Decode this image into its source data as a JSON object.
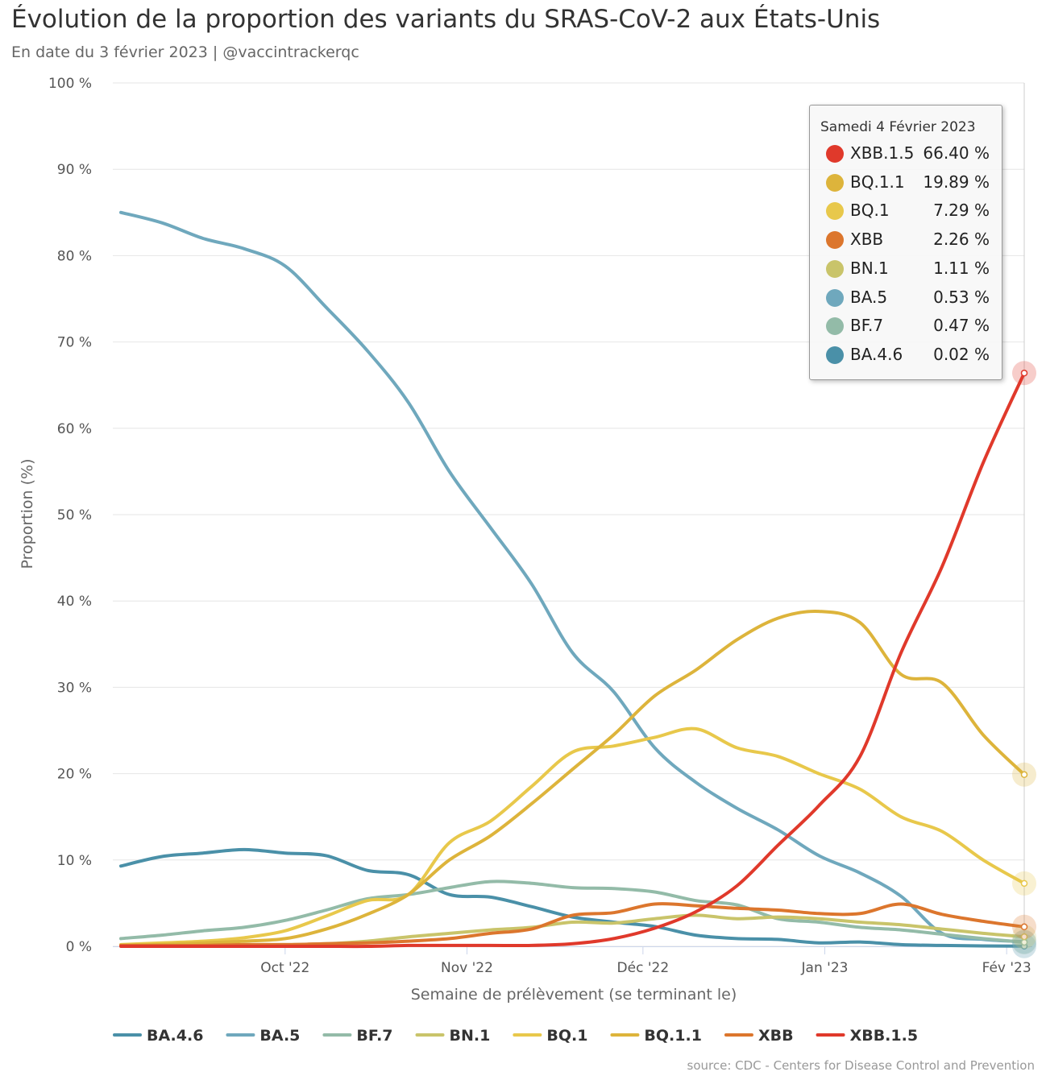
{
  "title": "Évolution de la proportion des variants du SRAS-CoV-2 aux États-Unis",
  "subtitle": "En date du 3 février 2023 | @vaccintrackerqc",
  "source": "source: CDC - Centers for Disease Control and Prevention",
  "tooltip": {
    "date": "Samedi 4 Février 2023",
    "rows": [
      {
        "name": "XBB.1.5",
        "value": "66.40 %",
        "color": "#e0392b"
      },
      {
        "name": "BQ.1.1",
        "value": "19.89 %",
        "color": "#ddb43b"
      },
      {
        "name": "BQ.1",
        "value": "7.29 %",
        "color": "#e8c84b"
      },
      {
        "name": "XBB",
        "value": "2.26 %",
        "color": "#dc762d"
      },
      {
        "name": "BN.1",
        "value": "1.11 %",
        "color": "#c9c46a"
      },
      {
        "name": "BA.5",
        "value": "0.53 %",
        "color": "#6fa8bd"
      },
      {
        "name": "BF.7",
        "value": "0.47 %",
        "color": "#93bba8"
      },
      {
        "name": "BA.4.6",
        "value": "0.02 %",
        "color": "#4a90a8"
      }
    ]
  },
  "chart_data": {
    "type": "line",
    "title": "Évolution de la proportion des variants du SRAS-CoV-2 aux États-Unis",
    "subtitle": "En date du 3 février 2023 | @vaccintrackerqc",
    "xlabel": "Semaine de prélèvement (se terminant le)",
    "ylabel": "Proportion (%)",
    "ylim": [
      0,
      100
    ],
    "yticks": [
      "0 %",
      "10 %",
      "20 %",
      "30 %",
      "40 %",
      "50 %",
      "60 %",
      "70 %",
      "80 %",
      "90 %",
      "100 %"
    ],
    "xlim": [
      "2022-09-03",
      "2023-02-04"
    ],
    "xticks": [
      {
        "label": "Oct '22",
        "date": "2022-10-01"
      },
      {
        "label": "Nov '22",
        "date": "2022-11-01"
      },
      {
        "label": "Déc '22",
        "date": "2022-12-01"
      },
      {
        "label": "Jan '23",
        "date": "2023-01-01"
      },
      {
        "label": "Fév '23",
        "date": "2023-02-01"
      }
    ],
    "grid": true,
    "legend": "bottom",
    "x": [
      "2022-09-03",
      "2022-09-10",
      "2022-09-17",
      "2022-09-24",
      "2022-10-01",
      "2022-10-08",
      "2022-10-15",
      "2022-10-22",
      "2022-10-29",
      "2022-11-05",
      "2022-11-12",
      "2022-11-19",
      "2022-11-26",
      "2022-12-03",
      "2022-12-10",
      "2022-12-17",
      "2022-12-24",
      "2022-12-31",
      "2023-01-07",
      "2023-01-14",
      "2023-01-21",
      "2023-01-28",
      "2023-02-04"
    ],
    "series": [
      {
        "name": "BA.4.6",
        "color": "#4a90a8",
        "values": [
          9.3,
          10.4,
          10.8,
          11.2,
          10.8,
          10.5,
          8.8,
          8.3,
          6.0,
          5.7,
          4.6,
          3.4,
          2.8,
          2.3,
          1.3,
          0.9,
          0.8,
          0.4,
          0.5,
          0.2,
          0.1,
          0.05,
          0.02
        ]
      },
      {
        "name": "BA.5",
        "color": "#6fa8bd",
        "values": [
          85.0,
          83.8,
          82.0,
          80.8,
          78.8,
          74.0,
          69.0,
          63.0,
          55.0,
          48.5,
          42.0,
          34.0,
          29.5,
          23.0,
          19.0,
          16.0,
          13.5,
          10.5,
          8.5,
          5.8,
          1.5,
          0.8,
          0.53
        ]
      },
      {
        "name": "BF.7",
        "color": "#93bba8",
        "values": [
          0.9,
          1.3,
          1.8,
          2.2,
          3.0,
          4.2,
          5.5,
          6.0,
          6.8,
          7.5,
          7.3,
          6.8,
          6.7,
          6.3,
          5.3,
          4.8,
          3.2,
          2.8,
          2.2,
          1.9,
          1.4,
          0.9,
          0.47
        ]
      },
      {
        "name": "BN.1",
        "color": "#c9c46a",
        "values": [
          0.1,
          0.1,
          0.1,
          0.2,
          0.2,
          0.3,
          0.6,
          1.1,
          1.5,
          1.9,
          2.2,
          2.8,
          2.7,
          3.2,
          3.6,
          3.2,
          3.4,
          3.2,
          2.8,
          2.5,
          2.0,
          1.5,
          1.11
        ]
      },
      {
        "name": "BQ.1",
        "color": "#e8c84b",
        "values": [
          0.2,
          0.4,
          0.6,
          1.0,
          1.8,
          3.5,
          5.3,
          6.0,
          12.0,
          14.5,
          18.5,
          22.5,
          23.2,
          24.2,
          25.2,
          23.0,
          22.0,
          20.0,
          18.2,
          15.0,
          13.3,
          10.0,
          7.29
        ]
      },
      {
        "name": "BQ.1.1",
        "color": "#ddb43b",
        "values": [
          0.1,
          0.2,
          0.4,
          0.6,
          0.9,
          2.0,
          3.7,
          6.0,
          10.0,
          12.8,
          16.5,
          20.5,
          24.5,
          29.0,
          32.0,
          35.5,
          38.0,
          38.8,
          37.5,
          31.5,
          30.5,
          24.5,
          19.89
        ]
      },
      {
        "name": "XBB",
        "color": "#dc762d",
        "values": [
          0.1,
          0.1,
          0.1,
          0.2,
          0.2,
          0.3,
          0.4,
          0.6,
          0.9,
          1.5,
          2.0,
          3.6,
          3.9,
          4.9,
          4.7,
          4.4,
          4.2,
          3.8,
          3.8,
          4.9,
          3.7,
          2.9,
          2.26
        ]
      },
      {
        "name": "XBB.1.5",
        "color": "#e0392b",
        "values": [
          0.0,
          0.0,
          0.0,
          0.0,
          0.0,
          0.0,
          0.0,
          0.1,
          0.1,
          0.1,
          0.1,
          0.3,
          0.9,
          2.1,
          4.0,
          7.0,
          11.7,
          16.3,
          22.0,
          34.0,
          44.0,
          56.0,
          66.4
        ]
      }
    ]
  }
}
